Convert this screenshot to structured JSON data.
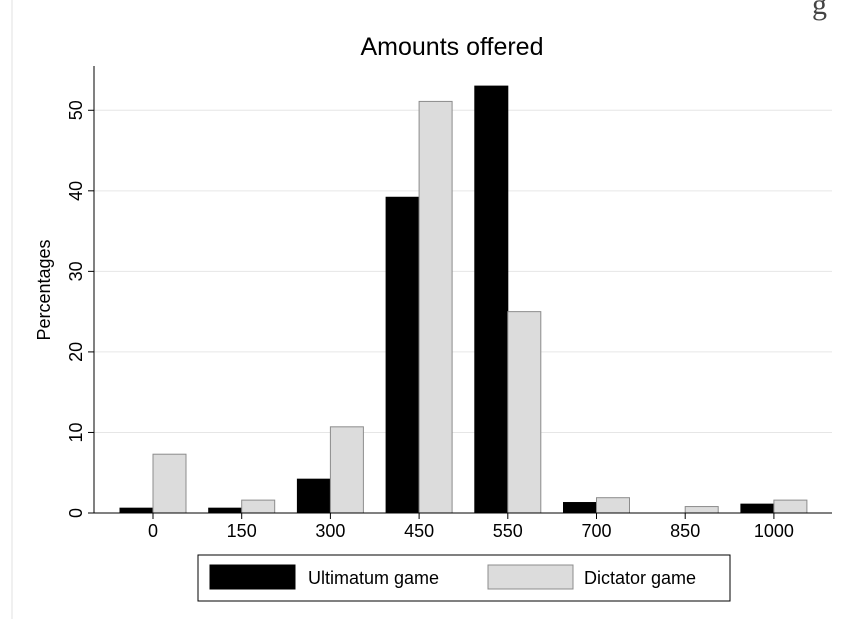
{
  "header_fragment": "g",
  "chart_data": {
    "type": "bar",
    "title": "Amounts offered",
    "xlabel": "",
    "ylabel": "Percentages",
    "categories": [
      "0",
      "150",
      "300",
      "450",
      "550",
      "700",
      "850",
      "1000"
    ],
    "ylim": [
      0,
      55
    ],
    "yticks": [
      0,
      10,
      20,
      30,
      40,
      50
    ],
    "grid": true,
    "legend_position": "bottom",
    "series": [
      {
        "name": "Ultimatum game",
        "color": "#000000",
        "values": [
          0.6,
          0.6,
          4.2,
          39.2,
          53.0,
          1.3,
          0,
          1.1
        ]
      },
      {
        "name": "Dictator game",
        "color": "#dcdcdc",
        "values": [
          7.3,
          1.6,
          10.7,
          51.1,
          25.0,
          1.9,
          0.8,
          1.6
        ]
      }
    ]
  }
}
